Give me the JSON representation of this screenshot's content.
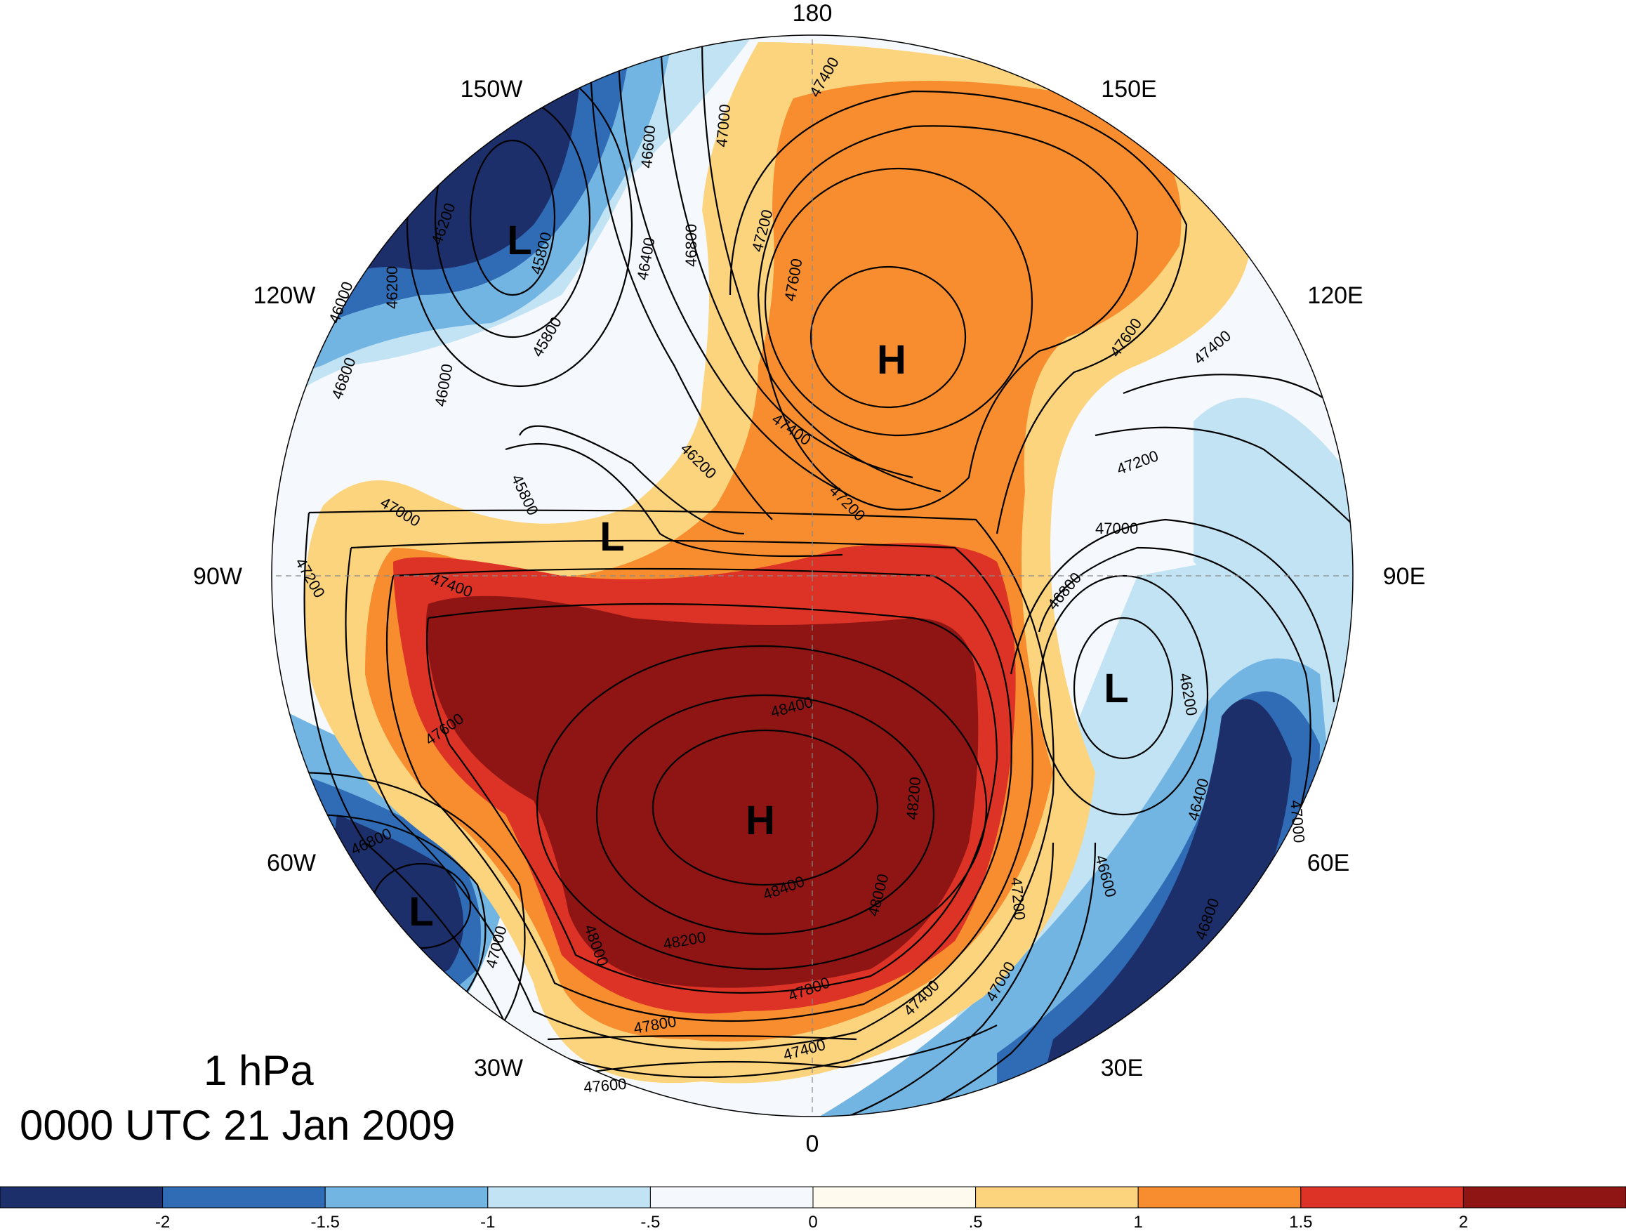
{
  "title": {
    "level": "1 hPa",
    "time": "0000 UTC 21 Jan 2009"
  },
  "longitude_labels": [
    "180",
    "150E",
    "120E",
    "90E",
    "60E",
    "30E",
    "0",
    "30W",
    "60W",
    "90W",
    "120W",
    "150W"
  ],
  "centers": [
    {
      "type": "L",
      "label": "L"
    },
    {
      "type": "L",
      "label": "L"
    },
    {
      "type": "L",
      "label": "L"
    },
    {
      "type": "L",
      "label": "L"
    },
    {
      "type": "H",
      "label": "H"
    },
    {
      "type": "H",
      "label": "H"
    }
  ],
  "contour_labels": [
    "47400",
    "47200",
    "47000",
    "46800",
    "46600",
    "46400",
    "46200",
    "46000",
    "45800",
    "47600",
    "47800",
    "48000",
    "48200",
    "48400"
  ],
  "colorbar": {
    "colors": [
      "#1d2f6a",
      "#2f6cb5",
      "#73b5e2",
      "#c2e3f4",
      "#f5f9fd",
      "#fefbee",
      "#fdd47e",
      "#f78d2e",
      "#dd3226",
      "#8f1515"
    ],
    "tick_labels": [
      "-2",
      "-1.5",
      "-1",
      "-.5",
      "0",
      ".5",
      "1",
      "1.5",
      "2"
    ]
  },
  "colors": {
    "anomaly_pos_strong": "#8f1515",
    "anomaly_pos": "#dd3226",
    "anomaly_pos_mod": "#f78d2e",
    "anomaly_pos_weak": "#fdd47e",
    "anomaly_neg_strong": "#1d2f6a",
    "anomaly_neg": "#2f6cb5"
  }
}
